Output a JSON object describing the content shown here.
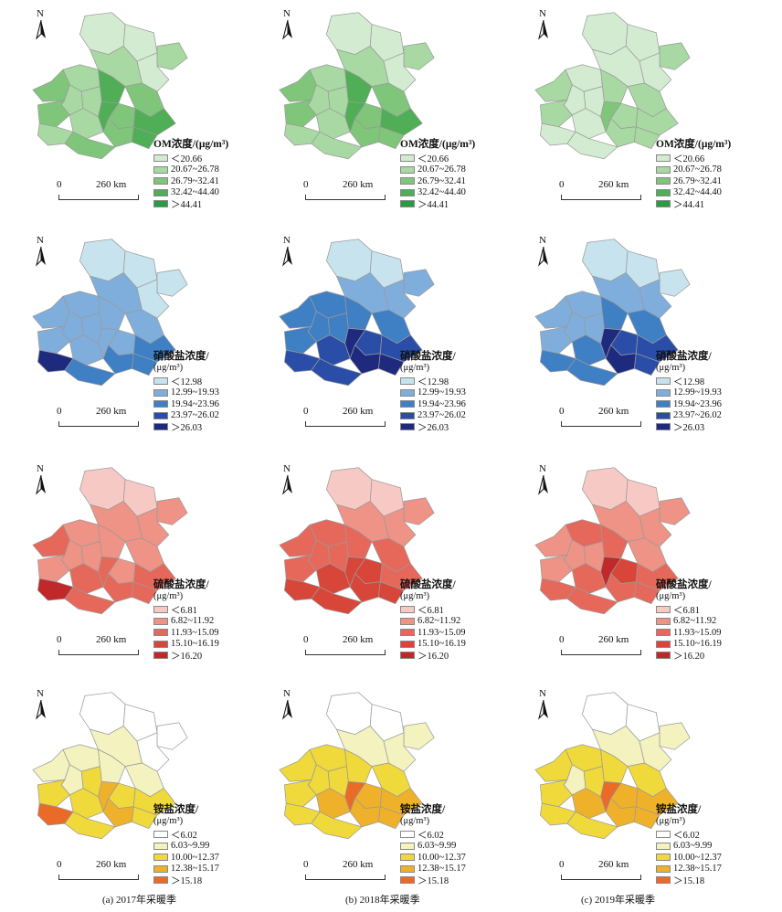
{
  "north_label": "N",
  "scale": {
    "zero": "0",
    "distance": "260 km"
  },
  "captions": [
    "(a)  2017年采暖季",
    "(b)  2018年采暖季",
    "(c)  2019年采暖季"
  ],
  "rows": [
    {
      "pollutant": "OM",
      "title": "OM浓度/(μg/m³)",
      "unit": "",
      "colors": [
        "#d3ecd1",
        "#a8d9a2",
        "#7fc67a",
        "#4fae56",
        "#2a9a46"
      ],
      "classes": [
        "＜20.66",
        "20.67~26.78",
        "26.79~32.41",
        "32.42~44.40",
        "＞44.41"
      ],
      "years": [
        {
          "year": "2017",
          "region_classes": [
            0,
            0,
            1,
            0,
            1,
            1,
            3,
            2,
            2,
            1,
            1,
            2,
            3,
            3,
            2,
            1,
            2,
            3,
            2,
            1
          ]
        },
        {
          "year": "2018",
          "region_classes": [
            0,
            0,
            1,
            0,
            1,
            1,
            3,
            2,
            2,
            1,
            1,
            2,
            3,
            3,
            2,
            1,
            2,
            2,
            1,
            1
          ]
        },
        {
          "year": "2019",
          "region_classes": [
            0,
            0,
            1,
            0,
            0,
            0,
            1,
            1,
            1,
            0,
            0,
            1,
            2,
            1,
            1,
            0,
            1,
            1,
            0,
            0
          ]
        }
      ]
    },
    {
      "pollutant": "NO3",
      "title": "硝酸盐浓度/",
      "unit": "(μg/m³)",
      "colors": [
        "#c6e3ee",
        "#7faedc",
        "#3f7fc4",
        "#2a4da8",
        "#1d2a7e"
      ],
      "classes": [
        "＜12.98",
        "12.99~19.93",
        "19.94~23.96",
        "23.97~26.02",
        "＞26.03"
      ],
      "years": [
        {
          "year": "2017",
          "region_classes": [
            0,
            0,
            0,
            0,
            1,
            1,
            1,
            1,
            1,
            1,
            1,
            1,
            1,
            2,
            1,
            1,
            2,
            2,
            2,
            4
          ]
        },
        {
          "year": "2018",
          "region_classes": [
            0,
            0,
            1,
            1,
            1,
            2,
            2,
            2,
            2,
            2,
            2,
            3,
            4,
            3,
            2,
            3,
            4,
            4,
            3,
            3
          ]
        },
        {
          "year": "2019",
          "region_classes": [
            0,
            0,
            0,
            1,
            1,
            1,
            2,
            2,
            1,
            1,
            1,
            3,
            4,
            3,
            1,
            2,
            4,
            3,
            2,
            2
          ]
        }
      ]
    },
    {
      "pollutant": "SO4",
      "title": "硫酸盐浓度/",
      "unit": "(μg/m³)",
      "colors": [
        "#f7c9c4",
        "#ee9386",
        "#e6685a",
        "#d8463a",
        "#c0282a"
      ],
      "classes": [
        "＜6.81",
        "6.82~11.92",
        "11.93~15.09",
        "15.10~16.19",
        "＞16.20"
      ],
      "years": [
        {
          "year": "2017",
          "region_classes": [
            0,
            0,
            1,
            1,
            1,
            1,
            1,
            1,
            2,
            1,
            1,
            1,
            2,
            2,
            1,
            2,
            2,
            2,
            2,
            4
          ]
        },
        {
          "year": "2018",
          "region_classes": [
            0,
            0,
            1,
            1,
            1,
            2,
            2,
            2,
            2,
            2,
            2,
            3,
            3,
            2,
            2,
            3,
            3,
            3,
            3,
            3
          ]
        },
        {
          "year": "2019",
          "region_classes": [
            0,
            0,
            1,
            1,
            1,
            2,
            2,
            1,
            1,
            1,
            1,
            3,
            4,
            2,
            1,
            2,
            2,
            2,
            2,
            2
          ]
        }
      ]
    },
    {
      "pollutant": "NH4",
      "title": "铵盐浓度/",
      "unit": "(μg/m³)",
      "colors": [
        "#ffffff",
        "#f4f2bf",
        "#f0d93a",
        "#f0b12a",
        "#ea6a28"
      ],
      "classes": [
        "＜6.02",
        "6.03~9.99",
        "10.00~12.37",
        "12.38~15.17",
        "＞15.18"
      ],
      "years": [
        {
          "year": "2017",
          "region_classes": [
            0,
            0,
            0,
            0,
            1,
            1,
            1,
            1,
            1,
            1,
            2,
            2,
            3,
            2,
            2,
            2,
            3,
            2,
            2,
            4
          ]
        },
        {
          "year": "2018",
          "region_classes": [
            0,
            0,
            1,
            1,
            1,
            2,
            2,
            2,
            2,
            2,
            2,
            3,
            4,
            3,
            2,
            3,
            3,
            3,
            2,
            2
          ]
        },
        {
          "year": "2019",
          "region_classes": [
            0,
            0,
            1,
            1,
            1,
            2,
            2,
            2,
            2,
            1,
            2,
            3,
            4,
            3,
            2,
            3,
            3,
            3,
            2,
            2
          ]
        }
      ]
    }
  ]
}
